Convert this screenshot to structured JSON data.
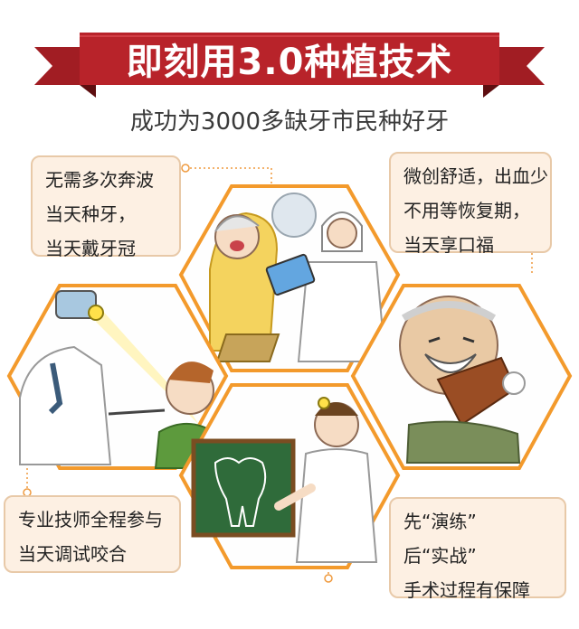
{
  "banner": {
    "title": "即刻用3.0种植技术"
  },
  "subtitle": "成功为3000多缺牙市民种好牙",
  "callouts": {
    "top_left": [
      "无需多次奔波",
      "当天种牙，",
      "当天戴牙冠"
    ],
    "top_right": [
      "微创舒适，出血少",
      "不用等恢复期，",
      "当天享口福"
    ],
    "bottom_left": [
      "专业技师全程参与",
      "当天调试咬合"
    ],
    "bottom_right": [
      "先“演练”",
      "后“实战”",
      "手术过程有保障"
    ]
  },
  "colors": {
    "banner_red": "#b8232a",
    "banner_dark": "#7e1417",
    "hex_border": "#f39a2c",
    "callout_bg": "#fdf0e3",
    "callout_border": "#e8c9a8",
    "board_green": "#2f6b3a"
  }
}
